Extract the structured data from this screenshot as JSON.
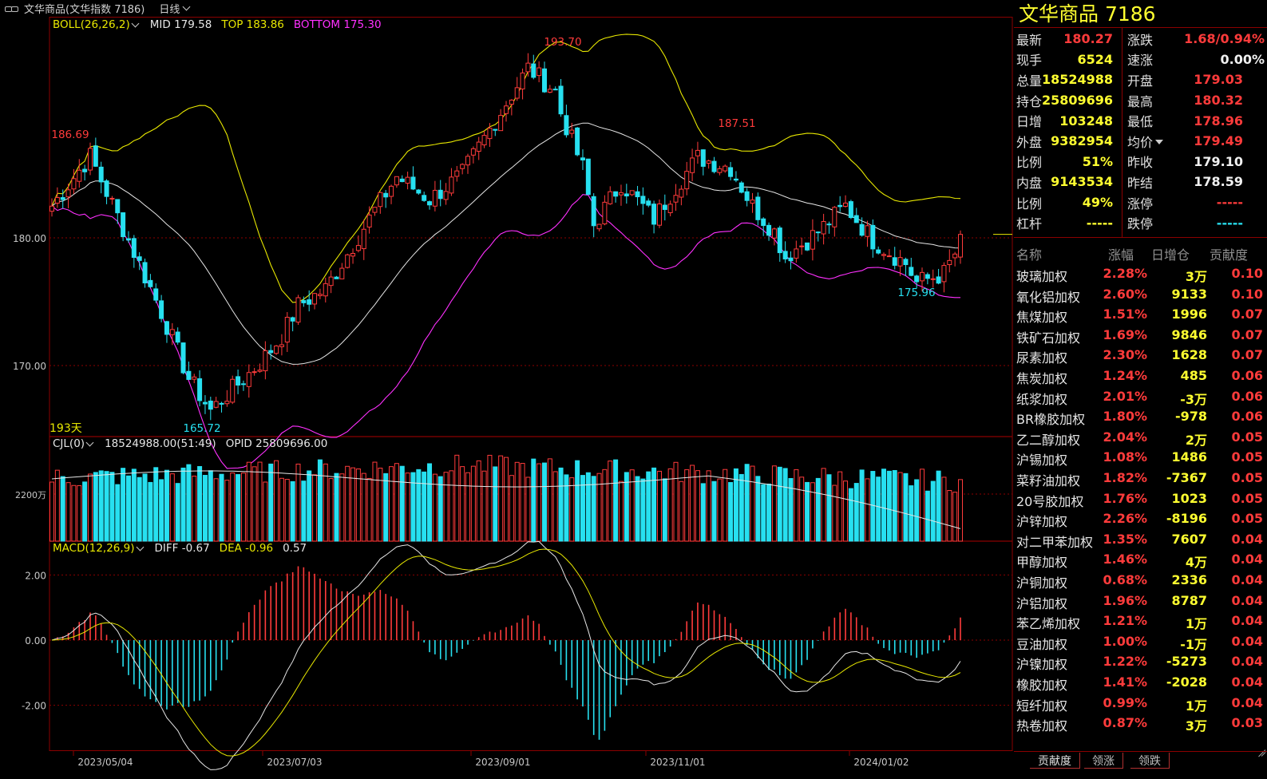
{
  "window": {
    "title": "文华商品(文华指数  7186)",
    "period": "日线"
  },
  "colors": {
    "up": "#ff3b3b",
    "down": "#27e0f0",
    "boll_top": "#e8e800",
    "boll_bottom": "#ff30ff",
    "mid": "#e6e6e6",
    "grid": "#8b0000"
  },
  "boll": {
    "label": "BOLL(26,26,2)",
    "mid": "MID 179.58",
    "top": "TOP 183.86",
    "bottom": "BOTTOM 175.30"
  },
  "price_annotations": {
    "high1": "186.69",
    "high2": "193.70",
    "high3": "187.51",
    "low1": "165.72",
    "low2": "175.96",
    "days": "193天"
  },
  "vol": {
    "label": "CJL(0)",
    "value": "18524988.00(51:49)",
    "opid": "OPID 25809696.00"
  },
  "macd": {
    "label": "MACD(12,26,9)",
    "diff": "DIFF -0.67",
    "dea": "DEA -0.96",
    "macd": "0.57"
  },
  "chart_data": {
    "type": "candlestick",
    "title": "",
    "x_ticks": [
      "2023/05/04",
      "2023/07/03",
      "2023/09/01",
      "2023/11/01",
      "2024/01/02"
    ],
    "price_ticks": [
      "180.00",
      "170.00"
    ],
    "volume_ticks": [
      "2200万"
    ],
    "macd_ticks": [
      "2.00",
      "0.00",
      "-2.00"
    ],
    "ylim": [
      164.5,
      196
    ],
    "price_path": [
      [
        0,
        182.5
      ],
      [
        7,
        186.4
      ],
      [
        20,
        174.2
      ],
      [
        25,
        169.0
      ],
      [
        29,
        166.5
      ],
      [
        38,
        170.2
      ],
      [
        42,
        172.3
      ],
      [
        45,
        174.7
      ],
      [
        50,
        176.0
      ],
      [
        58,
        181.5
      ],
      [
        63,
        184.8
      ],
      [
        69,
        183.0
      ],
      [
        75,
        185.0
      ],
      [
        80,
        188.5
      ],
      [
        87,
        193.3
      ],
      [
        92,
        191.5
      ],
      [
        93,
        189.8
      ],
      [
        97,
        185.5
      ],
      [
        99,
        181.0
      ],
      [
        104,
        184.3
      ],
      [
        110,
        181.5
      ],
      [
        114,
        184.0
      ],
      [
        118,
        186.3
      ],
      [
        124,
        185.5
      ],
      [
        128,
        182.5
      ],
      [
        132,
        180.5
      ],
      [
        134,
        178.5
      ],
      [
        140,
        180.5
      ],
      [
        145,
        182.5
      ],
      [
        150,
        179.8
      ],
      [
        156,
        178.0
      ],
      [
        158,
        176.5
      ],
      [
        163,
        177.2
      ],
      [
        166,
        179.5
      ]
    ]
  },
  "quote": {
    "title": "文华商品  7186",
    "rows": [
      {
        "l_label": "最新",
        "l_value": "180.27",
        "l_color": "red",
        "r_label": "涨跌",
        "r_value": "1.68/0.94%",
        "r_color": "red"
      },
      {
        "l_label": "现手",
        "l_value": "6524",
        "l_color": "yellow",
        "r_label": "速涨",
        "r_value": "0.00%",
        "r_color": "white"
      },
      {
        "l_label": "总量",
        "l_value": "18524988",
        "l_color": "yellow",
        "r_label": "开盘",
        "r_value": "179.03",
        "r_color": "red"
      },
      {
        "l_label": "持仓",
        "l_value": "25809696",
        "l_color": "yellow",
        "r_label": "最高",
        "r_value": "180.32",
        "r_color": "red"
      },
      {
        "l_label": "日增",
        "l_value": "103248",
        "l_color": "yellow",
        "r_label": "最低",
        "r_value": "178.96",
        "r_color": "red"
      },
      {
        "l_label": "外盘",
        "l_value": "9382954",
        "l_color": "yellow",
        "r_label": "均价",
        "r_value": "179.49",
        "r_color": "red"
      },
      {
        "l_label": "比例",
        "l_value": "51%",
        "l_color": "yellow",
        "r_label": "昨收",
        "r_value": "179.10",
        "r_color": "white"
      },
      {
        "l_label": "内盘",
        "l_value": "9143534",
        "l_color": "yellow",
        "r_label": "昨结",
        "r_value": "178.59",
        "r_color": "white"
      },
      {
        "l_label": "比例",
        "l_value": "49%",
        "l_color": "yellow",
        "r_label": "涨停",
        "r_value": "-----",
        "r_color": "red"
      },
      {
        "l_label": "杠杆",
        "l_value": "-----",
        "l_color": "yellow",
        "r_label": "跌停",
        "r_value": "-----",
        "r_color": "cyan"
      }
    ]
  },
  "list": {
    "headers": [
      "名称",
      "涨幅",
      "日增仓",
      "贡献度"
    ],
    "rows": [
      {
        "name": "玻璃加权",
        "chg": "2.28%",
        "oi": "3万",
        "ctb": "0.10"
      },
      {
        "name": "氧化铝加权",
        "chg": "2.60%",
        "oi": "9133",
        "ctb": "0.10"
      },
      {
        "name": "焦煤加权",
        "chg": "1.51%",
        "oi": "1996",
        "ctb": "0.07"
      },
      {
        "name": "铁矿石加权",
        "chg": "1.69%",
        "oi": "9846",
        "ctb": "0.07"
      },
      {
        "name": "尿素加权",
        "chg": "2.30%",
        "oi": "1628",
        "ctb": "0.07"
      },
      {
        "name": "焦炭加权",
        "chg": "1.24%",
        "oi": "485",
        "ctb": "0.06"
      },
      {
        "name": "纸浆加权",
        "chg": "2.01%",
        "oi": "-3万",
        "ctb": "0.06"
      },
      {
        "name": "BR橡胶加权",
        "chg": "1.80%",
        "oi": "-978",
        "ctb": "0.06"
      },
      {
        "name": "乙二醇加权",
        "chg": "2.04%",
        "oi": "2万",
        "ctb": "0.05"
      },
      {
        "name": "沪锡加权",
        "chg": "1.08%",
        "oi": "1486",
        "ctb": "0.05"
      },
      {
        "name": "菜籽油加权",
        "chg": "1.82%",
        "oi": "-7367",
        "ctb": "0.05"
      },
      {
        "name": "20号胶加权",
        "chg": "1.76%",
        "oi": "1023",
        "ctb": "0.05"
      },
      {
        "name": "沪锌加权",
        "chg": "2.26%",
        "oi": "-8196",
        "ctb": "0.05"
      },
      {
        "name": "对二甲苯加权",
        "chg": "1.35%",
        "oi": "7607",
        "ctb": "0.04"
      },
      {
        "name": "甲醇加权",
        "chg": "1.46%",
        "oi": "4万",
        "ctb": "0.04"
      },
      {
        "name": "沪铜加权",
        "chg": "0.68%",
        "oi": "2336",
        "ctb": "0.04"
      },
      {
        "name": "沪铝加权",
        "chg": "1.96%",
        "oi": "8787",
        "ctb": "0.04"
      },
      {
        "name": "苯乙烯加权",
        "chg": "1.21%",
        "oi": "1万",
        "ctb": "0.04"
      },
      {
        "name": "豆油加权",
        "chg": "1.00%",
        "oi": "-1万",
        "ctb": "0.04"
      },
      {
        "name": "沪镍加权",
        "chg": "1.22%",
        "oi": "-5273",
        "ctb": "0.04"
      },
      {
        "name": "橡胶加权",
        "chg": "1.41%",
        "oi": "-2028",
        "ctb": "0.04"
      },
      {
        "name": "短纤加权",
        "chg": "0.99%",
        "oi": "1万",
        "ctb": "0.04"
      },
      {
        "name": "热卷加权",
        "chg": "0.87%",
        "oi": "3万",
        "ctb": "0.03"
      }
    ]
  },
  "tabs": [
    "贡献度",
    "领涨",
    "领跌"
  ]
}
